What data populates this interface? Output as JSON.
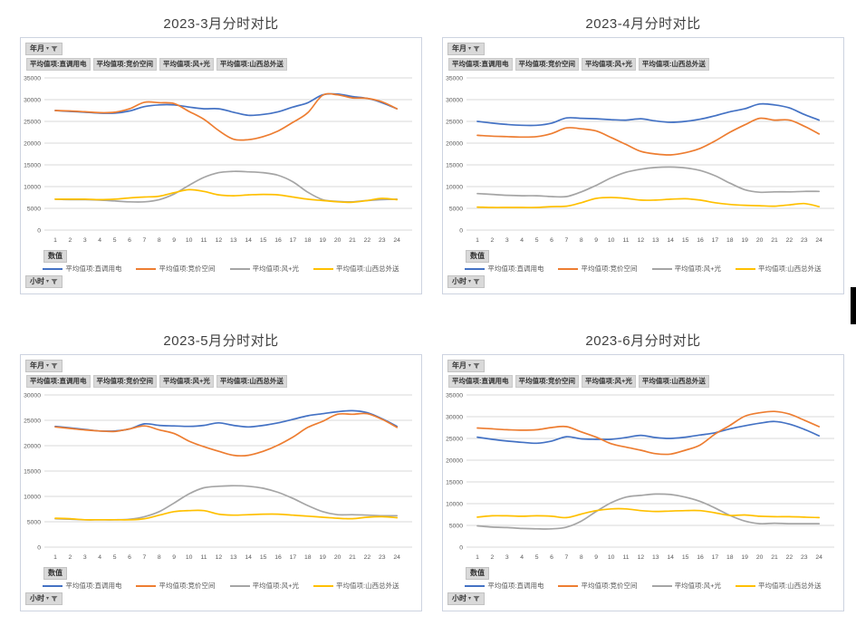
{
  "ui": {
    "filter_field_label": "年月",
    "row_field_label": "小时",
    "value_field_label": "数值",
    "pivot_fields": [
      "平均值项:直调用电",
      "平均值项:竞价空间",
      "平均值项:风+光",
      "平均值项:山西总外送"
    ]
  },
  "colors": {
    "series_blue": "#4472C4",
    "series_orange": "#ED7D31",
    "series_gray": "#A5A5A5",
    "series_yellow": "#FFC000",
    "grid": "#D9D9D9",
    "axis_text": "#595959",
    "title_text": "#404040",
    "button_bg": "#D9D9D9",
    "panel_border": "#CDD3E0",
    "edge_artifact": "#000000"
  },
  "chart_data": [
    {
      "type": "line",
      "title": "2023-3月分时对比",
      "xlabel": "小时",
      "ylabel": "",
      "x": [
        1,
        2,
        3,
        4,
        5,
        6,
        7,
        8,
        9,
        10,
        11,
        12,
        13,
        14,
        15,
        16,
        17,
        18,
        19,
        20,
        21,
        22,
        23,
        24
      ],
      "ylim": [
        0,
        35000
      ],
      "ytick_step": 5000,
      "grid": true,
      "legend_position": "bottom",
      "series": [
        {
          "name": "平均值项:直调用电",
          "color": "#4472C4",
          "values": [
            27500,
            27300,
            27100,
            26900,
            26900,
            27400,
            28400,
            28800,
            28800,
            28300,
            27900,
            27900,
            27100,
            26400,
            26600,
            27200,
            28300,
            29300,
            31100,
            31300,
            30700,
            30300,
            29300,
            27900
          ]
        },
        {
          "name": "平均值项:竞价空间",
          "color": "#ED7D31",
          "values": [
            27500,
            27400,
            27200,
            27000,
            27100,
            27900,
            29400,
            29300,
            29100,
            27300,
            25500,
            22900,
            20900,
            20800,
            21500,
            22800,
            24800,
            27000,
            31000,
            31100,
            30400,
            30300,
            29500,
            27900
          ]
        },
        {
          "name": "平均值项:风+光",
          "color": "#A5A5A5",
          "values": [
            7100,
            7000,
            7000,
            6900,
            6700,
            6500,
            6500,
            7000,
            8300,
            10300,
            12100,
            13200,
            13500,
            13400,
            13200,
            12600,
            11100,
            8700,
            7000,
            6600,
            6500,
            6800,
            7000,
            7100
          ]
        },
        {
          "name": "平均值项:山西总外送",
          "color": "#FFC000",
          "values": [
            7100,
            7100,
            7100,
            7000,
            7100,
            7400,
            7600,
            7800,
            8600,
            9300,
            8900,
            8100,
            7900,
            8100,
            8200,
            8100,
            7600,
            7100,
            6800,
            6500,
            6400,
            6800,
            7300,
            7000
          ]
        }
      ]
    },
    {
      "type": "line",
      "title": "2023-4月分时对比",
      "xlabel": "小时",
      "ylabel": "",
      "x": [
        1,
        2,
        3,
        4,
        5,
        6,
        7,
        8,
        9,
        10,
        11,
        12,
        13,
        14,
        15,
        16,
        17,
        18,
        19,
        20,
        21,
        22,
        23,
        24
      ],
      "ylim": [
        0,
        35000
      ],
      "ytick_step": 5000,
      "grid": true,
      "legend_position": "bottom",
      "series": [
        {
          "name": "平均值项:直调用电",
          "color": "#4472C4",
          "values": [
            25000,
            24600,
            24300,
            24100,
            24100,
            24600,
            25800,
            25700,
            25600,
            25400,
            25300,
            25600,
            25100,
            24800,
            25000,
            25500,
            26300,
            27200,
            27900,
            29000,
            28800,
            28100,
            26600,
            25300
          ]
        },
        {
          "name": "平均值项:竞价空间",
          "color": "#ED7D31",
          "values": [
            21800,
            21600,
            21500,
            21400,
            21500,
            22200,
            23500,
            23300,
            22800,
            21300,
            19700,
            18100,
            17500,
            17300,
            17800,
            18800,
            20500,
            22500,
            24200,
            25700,
            25300,
            25300,
            23900,
            22100
          ]
        },
        {
          "name": "平均值项:风+光",
          "color": "#A5A5A5",
          "values": [
            8400,
            8200,
            8000,
            7900,
            7900,
            7700,
            7700,
            8800,
            10300,
            12000,
            13300,
            14000,
            14400,
            14500,
            14300,
            13700,
            12500,
            10800,
            9300,
            8700,
            8800,
            8800,
            8900,
            8900
          ]
        },
        {
          "name": "平均值项:山西总外送",
          "color": "#FFC000",
          "values": [
            5300,
            5200,
            5200,
            5200,
            5200,
            5400,
            5500,
            6300,
            7300,
            7500,
            7300,
            6900,
            6900,
            7100,
            7200,
            6900,
            6300,
            5900,
            5700,
            5600,
            5500,
            5800,
            6100,
            5400
          ]
        }
      ]
    },
    {
      "type": "line",
      "title": "2023-5月分时对比",
      "xlabel": "小时",
      "ylabel": "",
      "x": [
        1,
        2,
        3,
        4,
        5,
        6,
        7,
        8,
        9,
        10,
        11,
        12,
        13,
        14,
        15,
        16,
        17,
        18,
        19,
        20,
        21,
        22,
        23,
        24
      ],
      "ylim": [
        0,
        30000
      ],
      "ytick_step": 5000,
      "grid": true,
      "legend_position": "bottom",
      "series": [
        {
          "name": "平均值项:直调用电",
          "color": "#4472C4",
          "values": [
            23800,
            23500,
            23200,
            22900,
            22900,
            23300,
            24300,
            24000,
            23900,
            23800,
            24000,
            24500,
            24000,
            23700,
            24000,
            24500,
            25200,
            25900,
            26300,
            26700,
            26900,
            26500,
            25300,
            23800
          ]
        },
        {
          "name": "平均值项:竞价空间",
          "color": "#ED7D31",
          "values": [
            23700,
            23400,
            23100,
            22900,
            22800,
            23300,
            23900,
            23100,
            22400,
            20900,
            19800,
            18900,
            18100,
            18100,
            18900,
            20100,
            21700,
            23600,
            24800,
            26200,
            26200,
            26300,
            25200,
            23600
          ]
        },
        {
          "name": "平均值项:风+光",
          "color": "#A5A5A5",
          "values": [
            5600,
            5500,
            5400,
            5400,
            5400,
            5500,
            6000,
            7000,
            8700,
            10500,
            11700,
            12000,
            12100,
            12000,
            11600,
            10800,
            9600,
            8200,
            7000,
            6400,
            6400,
            6300,
            6200,
            6200
          ]
        },
        {
          "name": "平均值项:山西总外送",
          "color": "#FFC000",
          "values": [
            5700,
            5600,
            5400,
            5400,
            5400,
            5400,
            5600,
            6300,
            7000,
            7200,
            7200,
            6500,
            6300,
            6400,
            6500,
            6500,
            6300,
            6100,
            5900,
            5700,
            5600,
            5900,
            6000,
            5800
          ]
        }
      ]
    },
    {
      "type": "line",
      "title": "2023-6月分时对比",
      "xlabel": "小时",
      "ylabel": "",
      "x": [
        1,
        2,
        3,
        4,
        5,
        6,
        7,
        8,
        9,
        10,
        11,
        12,
        13,
        14,
        15,
        16,
        17,
        18,
        19,
        20,
        21,
        22,
        23,
        24
      ],
      "ylim": [
        0,
        35000
      ],
      "ytick_step": 5000,
      "grid": true,
      "legend_position": "bottom",
      "series": [
        {
          "name": "平均值项:直调用电",
          "color": "#4472C4",
          "values": [
            25300,
            24800,
            24400,
            24100,
            23900,
            24400,
            25400,
            24900,
            24800,
            24800,
            25200,
            25700,
            25200,
            25000,
            25300,
            25800,
            26300,
            27200,
            27900,
            28500,
            28900,
            28300,
            27100,
            25600
          ]
        },
        {
          "name": "平均值项:竞价空间",
          "color": "#ED7D31",
          "values": [
            27400,
            27200,
            27000,
            26900,
            27000,
            27500,
            27700,
            26500,
            25300,
            23800,
            23000,
            22300,
            21500,
            21400,
            22300,
            23500,
            26000,
            28000,
            30100,
            30900,
            31200,
            30600,
            29200,
            27700
          ]
        },
        {
          "name": "平均值项:风+光",
          "color": "#A5A5A5",
          "values": [
            4900,
            4600,
            4500,
            4300,
            4200,
            4200,
            4600,
            6000,
            8200,
            10200,
            11500,
            11900,
            12200,
            12100,
            11500,
            10500,
            9000,
            7300,
            6000,
            5400,
            5500,
            5400,
            5400,
            5400
          ]
        },
        {
          "name": "平均值项:山西总外送",
          "color": "#FFC000",
          "values": [
            6900,
            7200,
            7200,
            7100,
            7200,
            7100,
            6800,
            7600,
            8400,
            8800,
            8800,
            8400,
            8200,
            8300,
            8400,
            8400,
            7900,
            7300,
            7400,
            7100,
            7000,
            7000,
            6900,
            6800
          ]
        }
      ]
    }
  ]
}
